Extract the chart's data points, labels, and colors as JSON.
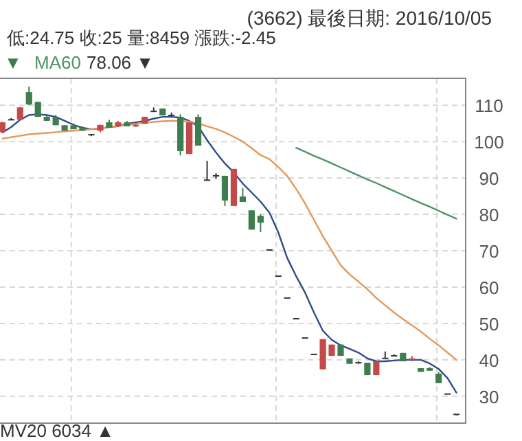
{
  "chart_data": {
    "type": "candlestick",
    "title": "(3662)   最後日期: 2016/10/05",
    "annotations": [
      "低:24.75  收:25  量:8459  漲跌:-2.45",
      "▼",
      "78.06 ▼",
      "MV20 6034 ▲"
    ],
    "categories": [
      null,
      null,
      null,
      null,
      null,
      null,
      null,
      null,
      null,
      null,
      null,
      null,
      null,
      null,
      null,
      null,
      null,
      null,
      null,
      null,
      null,
      null,
      null,
      null,
      null,
      null,
      null,
      null,
      null,
      null,
      null,
      null,
      null,
      null,
      null,
      null,
      null,
      null,
      null,
      null,
      null,
      null,
      null,
      null,
      null,
      null,
      null,
      null,
      null,
      null,
      null,
      null
    ],
    "ohlc": [
      [
        102.6,
        105.5,
        102.3,
        105.3
      ],
      [
        106,
        106.5,
        106,
        106
      ],
      [
        106,
        109.5,
        106,
        109.4
      ],
      [
        113.6,
        115.1,
        110,
        110.2
      ],
      [
        110.9,
        111,
        106.8,
        106.8
      ],
      [
        106.8,
        107.5,
        105.7,
        105.7
      ],
      [
        106.8,
        107.3,
        104.5,
        104.5
      ],
      [
        104.5,
        104.5,
        103,
        103
      ],
      [
        104.5,
        105,
        103.4,
        103.4
      ],
      [
        103.8,
        104.2,
        103,
        103
      ],
      [
        101.9,
        101.9,
        101.5,
        101.9
      ],
      [
        103,
        104.6,
        102.6,
        104.6
      ],
      [
        105.3,
        106,
        103.8,
        103.8
      ],
      [
        104.2,
        105.7,
        104,
        105.3
      ],
      [
        105.3,
        105.7,
        104.2,
        104.2
      ],
      [
        104.2,
        105,
        104,
        104.6
      ],
      [
        104.9,
        106.8,
        104.9,
        106.8
      ],
      [
        108.3,
        109.4,
        108.3,
        108.3
      ],
      [
        109.1,
        109.1,
        107.2,
        107.2
      ],
      [
        107.2,
        108,
        107.2,
        107.2
      ],
      [
        106.8,
        107.5,
        96.2,
        97.4
      ],
      [
        96.6,
        105.3,
        96.6,
        105.3
      ],
      [
        106.8,
        107.5,
        98.9,
        98.9
      ],
      [
        89.4,
        94.7,
        89.4,
        89.4
      ],
      [
        90.6,
        91.3,
        89.8,
        90.6
      ],
      [
        90.6,
        90.6,
        82.3,
        83.8
      ],
      [
        82.3,
        92.5,
        82.3,
        92.5
      ],
      [
        84.9,
        87.2,
        83.4,
        83.4
      ],
      [
        81.1,
        81.1,
        75.8,
        75.8
      ],
      [
        79.6,
        80,
        75.1,
        77.7
      ],
      [
        70.2,
        70.2,
        70.2,
        70.2
      ],
      [
        63,
        63,
        63,
        63
      ],
      [
        57,
        57,
        57,
        57
      ],
      [
        51.3,
        51.3,
        51.3,
        51.3
      ],
      [
        46,
        46,
        46,
        46
      ],
      [
        41.5,
        41.5,
        41.5,
        41.5
      ],
      [
        37.4,
        45.7,
        37.4,
        45.7
      ],
      [
        41.1,
        44.2,
        41.1,
        44.2
      ],
      [
        44.2,
        44.2,
        41.1,
        41.1
      ],
      [
        40.4,
        40.4,
        38.9,
        38.9
      ],
      [
        39.2,
        39.6,
        38.9,
        39.2
      ],
      [
        39.2,
        39.2,
        35.8,
        35.8
      ],
      [
        35.8,
        39.6,
        35.8,
        39.6
      ],
      [
        40.4,
        42.3,
        40.4,
        40.4
      ],
      [
        41.1,
        41.5,
        41.1,
        41.1
      ],
      [
        41.9,
        41.9,
        39.6,
        39.6
      ],
      [
        40,
        41.1,
        39.6,
        40.4
      ],
      [
        37.7,
        37.7,
        36.7,
        36.7
      ],
      [
        37.7,
        38,
        37,
        37
      ],
      [
        36.2,
        36.6,
        33.6,
        33.6
      ],
      [
        30.6,
        30.6,
        30.6,
        30.6
      ],
      [
        25,
        25,
        24.75,
        25
      ]
    ],
    "colors": [
      "#c44a4a",
      "#333333",
      "#c44a4a",
      "#3f7d4f",
      "#3f7d4f",
      "#3f7d4f",
      "#3f7d4f",
      "#3f7d4f",
      "#3f7d4f",
      "#3f7d4f",
      "#333333",
      "#c44a4a",
      "#3f7d4f",
      "#c44a4a",
      "#3f7d4f",
      "#c44a4a",
      "#c44a4a",
      "#333333",
      "#3f7d4f",
      "#333333",
      "#3f7d4f",
      "#c44a4a",
      "#3f7d4f",
      "#333333",
      "#333333",
      "#3f7d4f",
      "#c44a4a",
      "#3f7d4f",
      "#3f7d4f",
      "#3f7d4f",
      "#333333",
      "#333333",
      "#333333",
      "#333333",
      "#333333",
      "#333333",
      "#c44a4a",
      "#c44a4a",
      "#3f7d4f",
      "#3f7d4f",
      "#333333",
      "#3f7d4f",
      "#c44a4a",
      "#333333",
      "#333333",
      "#3f7d4f",
      "#c44a4a",
      "#3f7d4f",
      "#3f7d4f",
      "#3f7d4f",
      "#333333",
      "#333333"
    ],
    "series": [
      {
        "type": "line",
        "color": "#2e4d8a",
        "values": [
          102.5,
          104,
          106,
          107.3,
          107.5,
          107.3,
          106.8,
          105.7,
          104.6,
          103.8,
          103.4,
          103.6,
          104,
          104.2,
          104.9,
          105.3,
          105.7,
          106.3,
          106.8,
          106.8,
          106.6,
          105.7,
          104.2,
          100.4,
          97,
          94,
          91.5,
          88.5,
          86,
          83.5,
          80.5,
          75,
          68,
          63,
          58.5,
          53,
          48,
          45.5,
          44,
          43,
          42,
          40.4,
          39.6,
          39.6,
          39.8,
          40,
          40,
          40,
          39,
          37.5,
          35,
          31
        ]
      },
      {
        "type": "line",
        "color": "#e39a5a",
        "values": [
          100.8,
          101.2,
          101.6,
          102,
          102.2,
          102.4,
          102.6,
          102.8,
          103,
          103.2,
          103.4,
          103.7,
          104,
          104.3,
          104.6,
          104.9,
          105.2,
          105.4,
          105.6,
          105.7,
          105.7,
          105.5,
          105,
          104.2,
          103.5,
          102.5,
          101.3,
          100,
          98.2,
          96.3,
          95.2,
          93,
          90.5,
          87,
          83,
          78.5,
          74,
          70,
          66,
          63.5,
          61.5,
          59.4,
          57,
          55,
          53,
          51.2,
          49.5,
          47.8,
          45.8,
          44,
          42,
          40
        ]
      },
      {
        "type": "line",
        "name": "MA60",
        "color": "#4f9366",
        "values": [
          null,
          null,
          null,
          null,
          null,
          null,
          null,
          null,
          null,
          null,
          null,
          null,
          null,
          null,
          null,
          null,
          null,
          null,
          null,
          null,
          null,
          null,
          null,
          null,
          null,
          null,
          null,
          null,
          null,
          null,
          null,
          null,
          null,
          98.3,
          97.2,
          96.1,
          95.1,
          94,
          92.9,
          91.8,
          90.7,
          89.6,
          88.6,
          87.5,
          86.4,
          85.3,
          84.2,
          83.1,
          82.1,
          81,
          79.9,
          78.8
        ]
      }
    ],
    "ylim": [
      22.6,
      117.4
    ],
    "yticks": [
      30,
      40,
      50,
      60,
      70,
      80,
      90,
      100,
      110
    ],
    "grid": true,
    "legend": "top left",
    "tick_labels": "y"
  }
}
